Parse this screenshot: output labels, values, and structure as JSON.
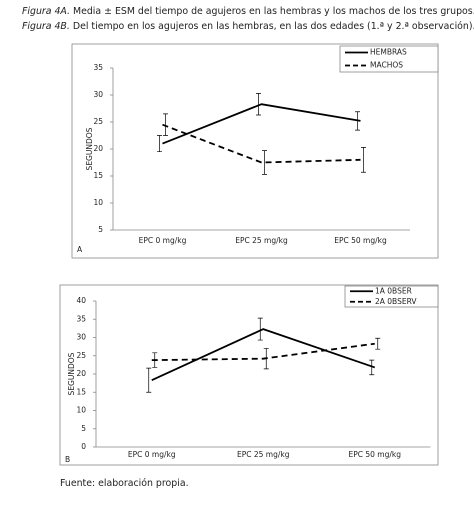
{
  "captions": [
    {
      "label": "Figura 4A.",
      "text": "Media ± ESM del tiempo de agujeros en las hembras y los machos de los tres grupos."
    },
    {
      "label": "Figura 4B.",
      "text": "Del tiempo en los agujeros en las hembras, en las dos edades (1.ª y 2.ª observación)."
    }
  ],
  "source": "Fuente: elaboración propia.",
  "chart_data": [
    {
      "type": "line",
      "panel_label": "A",
      "y_label": "SEGUNDOS",
      "categories": [
        "EPC 0 mg/kg",
        "EPC 25 mg/kg",
        "EPC 50 mg/kg"
      ],
      "series": [
        {
          "name": "HEMBRAS",
          "color": "#000000",
          "style": "solid",
          "values": [
            21,
            28.3,
            25.2
          ],
          "errors": [
            1.5,
            2,
            1.7
          ]
        },
        {
          "name": "MACHOS",
          "color": "#000000",
          "style": "dashed",
          "values": [
            24.5,
            17.5,
            18
          ],
          "errors": [
            2,
            2.2,
            2.3
          ]
        }
      ],
      "ylim": [
        5,
        35
      ],
      "yticks": [
        5,
        10,
        15,
        20,
        25,
        30,
        35
      ],
      "legend": "upper right"
    },
    {
      "type": "line",
      "panel_label": "B",
      "y_label": "SEGUNDOS",
      "categories": [
        "EPC 0 mg/kg",
        "EPC 25 mg/kg",
        "EPC 50 mg/kg"
      ],
      "series": [
        {
          "name": "1A 0BSER",
          "color": "#000000",
          "style": "solid",
          "values": [
            18.3,
            32.3,
            21.8
          ],
          "errors": [
            3.3,
            3,
            2
          ]
        },
        {
          "name": "2A 0BSERV",
          "color": "#000000",
          "style": "dashed",
          "values": [
            23.8,
            24.2,
            28.3
          ],
          "errors": [
            2,
            2.8,
            1.5
          ]
        }
      ],
      "ylim": [
        0,
        40
      ],
      "yticks": [
        0,
        5,
        10,
        15,
        20,
        25,
        30,
        35,
        40
      ],
      "legend": "upper right"
    }
  ]
}
